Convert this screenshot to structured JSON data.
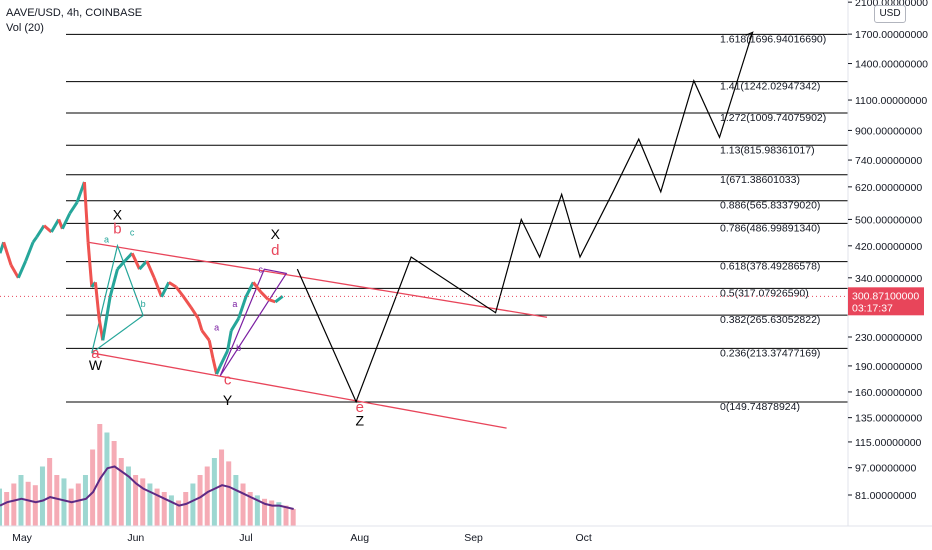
{
  "header": {
    "symbol_line": "AAVE/USD, 4h, COINBASE",
    "volume_line": "Vol (20)"
  },
  "currency_button": "USD",
  "colors": {
    "red": "#e8455a",
    "black": "#000000",
    "teal": "#26a69a",
    "purple": "#7b1fa2",
    "price_tag": "#e8455a"
  },
  "chart_data": {
    "type": "line",
    "price_axis": {
      "scale": "log",
      "range": [
        66,
        2130
      ],
      "tick_labels": [
        "2100.00000000",
        "1700.00000000",
        "1400.00000000",
        "1100.00000000",
        "900.00000000",
        "740.00000000",
        "620.00000000",
        "500.00000000",
        "420.00000000",
        "340.00000000",
        "280.00000000",
        "230.00000000",
        "190.00000000",
        "160.00000000",
        "135.00000000",
        "115.00000000",
        "97.00000000",
        "81.00000000"
      ],
      "tick_values": [
        2100,
        1700,
        1400,
        1100,
        900,
        740,
        620,
        500,
        420,
        340,
        280,
        230,
        190,
        160,
        135,
        115,
        97,
        81
      ]
    },
    "time_axis": {
      "labels": [
        "May",
        "Jun",
        "Jul",
        "Aug",
        "Sep",
        "Oct"
      ],
      "date_values": [
        "2021-05-01",
        "2021-06-01",
        "2021-07-01",
        "2021-08-01",
        "2021-09-01",
        "2021-10-01"
      ],
      "range": [
        "2021-04-25",
        "2021-12-12"
      ]
    },
    "last_price": {
      "value": "300.87100000",
      "countdown": "03:17:37",
      "price": 300.871
    },
    "fib_levels": [
      {
        "label": "1.618(1696.94016690)",
        "price": 1696.9401669
      },
      {
        "label": "1.41(1242.02947342)",
        "price": 1242.02947342
      },
      {
        "label": "1.272(1009.74075902)",
        "price": 1009.74075902
      },
      {
        "label": "1.13(815.98361017)",
        "price": 815.98361017
      },
      {
        "label": "1(671.38601033)",
        "price": 671.38601033
      },
      {
        "label": "0.886(565.83379020)",
        "price": 565.8337902
      },
      {
        "label": "0.786(486.99891340)",
        "price": 486.9989134
      },
      {
        "label": "0.618(378.49286578)",
        "price": 378.49286578
      },
      {
        "label": "0.5(317.07926590)",
        "price": 317.0792659
      },
      {
        "label": "0.382(265.63052822)",
        "price": 265.63052822
      },
      {
        "label": "0.236(213.37477169)",
        "price": 213.37477169
      },
      {
        "label": "0(149.74878924)",
        "price": 149.74878924
      }
    ],
    "channel_lines": [
      {
        "from": [
          "2021-05-19",
          430
        ],
        "to": [
          "2021-09-21",
          262
        ]
      },
      {
        "from": [
          "2021-05-20",
          207
        ],
        "to": [
          "2021-09-10",
          126
        ]
      }
    ],
    "projection_path": [
      [
        "2021-07-15",
        360
      ],
      [
        "2021-07-31",
        150
      ],
      [
        "2021-08-15",
        390
      ],
      [
        "2021-09-07",
        270
      ],
      [
        "2021-09-14",
        500
      ],
      [
        "2021-09-19",
        390
      ],
      [
        "2021-09-25",
        590
      ],
      [
        "2021-09-30",
        390
      ],
      [
        "2021-10-09",
        600
      ],
      [
        "2021-10-16",
        850
      ],
      [
        "2021-10-22",
        600
      ],
      [
        "2021-10-31",
        1250
      ],
      [
        "2021-11-07",
        860
      ],
      [
        "2021-11-16",
        1720
      ]
    ],
    "price_path": [
      [
        "2021-04-25",
        400
      ],
      [
        "2021-04-26",
        430
      ],
      [
        "2021-04-28",
        370
      ],
      [
        "2021-04-30",
        340
      ],
      [
        "2021-05-02",
        380
      ],
      [
        "2021-05-04",
        430
      ],
      [
        "2021-05-05",
        445
      ],
      [
        "2021-05-07",
        480
      ],
      [
        "2021-05-09",
        460
      ],
      [
        "2021-05-11",
        500
      ],
      [
        "2021-05-12",
        470
      ],
      [
        "2021-05-14",
        520
      ],
      [
        "2021-05-16",
        560
      ],
      [
        "2021-05-18",
        640
      ],
      [
        "2021-05-19",
        430
      ],
      [
        "2021-05-20",
        320
      ],
      [
        "2021-05-21",
        330
      ],
      [
        "2021-05-22",
        260
      ],
      [
        "2021-05-23",
        225
      ],
      [
        "2021-05-25",
        300
      ],
      [
        "2021-05-27",
        360
      ],
      [
        "2021-05-29",
        380
      ],
      [
        "2021-05-31",
        400
      ],
      [
        "2021-06-02",
        360
      ],
      [
        "2021-06-04",
        380
      ],
      [
        "2021-06-06",
        340
      ],
      [
        "2021-06-08",
        300
      ],
      [
        "2021-06-10",
        330
      ],
      [
        "2021-06-12",
        320
      ],
      [
        "2021-06-14",
        300
      ],
      [
        "2021-06-16",
        280
      ],
      [
        "2021-06-18",
        260
      ],
      [
        "2021-06-19",
        240
      ],
      [
        "2021-06-21",
        225
      ],
      [
        "2021-06-22",
        200
      ],
      [
        "2021-06-23",
        180
      ],
      [
        "2021-06-24",
        190
      ],
      [
        "2021-06-26",
        210
      ],
      [
        "2021-06-27",
        240
      ],
      [
        "2021-06-29",
        260
      ],
      [
        "2021-07-01",
        300
      ],
      [
        "2021-07-03",
        330
      ],
      [
        "2021-07-05",
        310
      ],
      [
        "2021-07-07",
        295
      ],
      [
        "2021-07-09",
        290
      ],
      [
        "2021-07-11",
        301
      ]
    ],
    "markers": [
      {
        "text": "a",
        "color": "red",
        "at": [
          "2021-05-21",
          200
        ],
        "size": 15
      },
      {
        "text": "W",
        "color": "black",
        "at": [
          "2021-05-21",
          185
        ],
        "size": 14
      },
      {
        "text": "b",
        "color": "red",
        "at": [
          "2021-05-27",
          455
        ],
        "size": 15
      },
      {
        "text": "X",
        "color": "black",
        "at": [
          "2021-05-27",
          500
        ],
        "size": 14
      },
      {
        "text": "c",
        "color": "red",
        "at": [
          "2021-06-26",
          168
        ],
        "size": 15
      },
      {
        "text": "Y",
        "color": "black",
        "at": [
          "2021-06-26",
          147
        ],
        "size": 14
      },
      {
        "text": "d",
        "color": "red",
        "at": [
          "2021-07-09",
          395
        ],
        "size": 15
      },
      {
        "text": "X",
        "color": "black",
        "at": [
          "2021-07-09",
          440
        ],
        "size": 14
      },
      {
        "text": "e",
        "color": "red",
        "at": [
          "2021-08-01",
          140
        ],
        "size": 15
      },
      {
        "text": "Z",
        "color": "black",
        "at": [
          "2021-08-01",
          128
        ],
        "size": 14
      }
    ],
    "small_markers": [
      {
        "text": "a",
        "color": "teal",
        "at": [
          "2021-05-24",
          430
        ]
      },
      {
        "text": "c",
        "color": "teal",
        "at": [
          "2021-05-31",
          450
        ]
      },
      {
        "text": "b",
        "color": "teal",
        "at": [
          "2021-06-03",
          280
        ]
      },
      {
        "text": "a",
        "color": "purple",
        "at": [
          "2021-06-23",
          240
        ]
      },
      {
        "text": "b",
        "color": "purple",
        "at": [
          "2021-06-29",
          210
        ]
      },
      {
        "text": "c",
        "color": "purple",
        "at": [
          "2021-07-05",
          352
        ]
      },
      {
        "text": "a",
        "color": "purple",
        "at": [
          "2021-06-28",
          280
        ]
      }
    ],
    "volume": {
      "values": [
        22,
        20,
        25,
        30,
        26,
        24,
        35,
        40,
        30,
        28,
        22,
        25,
        30,
        45,
        60,
        55,
        50,
        40,
        35,
        30,
        28,
        25,
        22,
        20,
        18,
        15,
        20,
        25,
        30,
        35,
        40,
        45,
        38,
        30,
        25,
        20,
        18,
        16,
        15,
        14,
        12,
        10
      ],
      "ma_values": [
        12,
        14,
        15,
        16,
        15,
        14,
        15,
        17,
        16,
        15,
        14,
        15,
        16,
        20,
        28,
        34,
        35,
        32,
        29,
        25,
        22,
        20,
        18,
        16,
        14,
        12,
        13,
        15,
        17,
        20,
        22,
        24,
        23,
        21,
        19,
        17,
        15,
        13,
        12,
        12,
        11,
        10
      ]
    }
  }
}
